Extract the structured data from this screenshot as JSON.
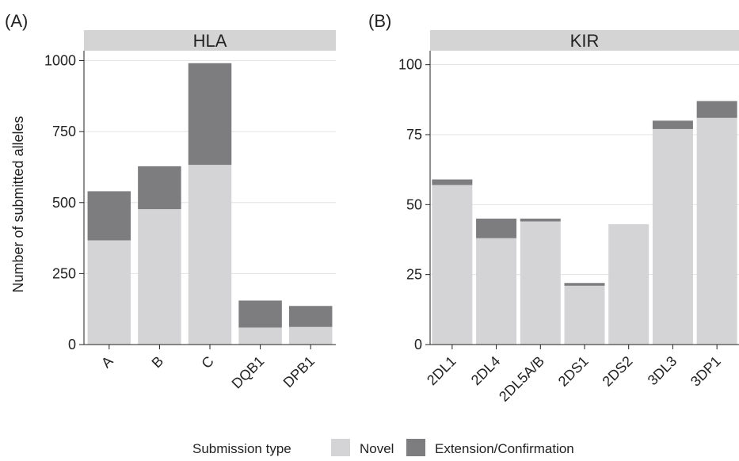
{
  "colors": {
    "novel": "#d4d4d6",
    "extension": "#7d7d80",
    "strip": "#d4d4d4",
    "grid": "#e3e3e3",
    "axis": "#222222"
  },
  "ylabel": "Number of submitted alleles",
  "legend": {
    "title": "Submission type",
    "items": [
      {
        "label": "Novel",
        "color": "#d4d4d6"
      },
      {
        "label": "Extension/Confirmation",
        "color": "#7d7d80"
      }
    ]
  },
  "chart_data": [
    {
      "type": "bar",
      "stacked": true,
      "panel_label": "(A)",
      "strip": "HLA",
      "categories": [
        "A",
        "B",
        "C",
        "DQB1",
        "DPB1"
      ],
      "series": [
        {
          "name": "Novel",
          "values": [
            367,
            477,
            633,
            60,
            62
          ]
        },
        {
          "name": "Extension/Confirmation",
          "values": [
            173,
            151,
            358,
            95,
            74
          ]
        }
      ],
      "ylim": [
        0,
        1000
      ],
      "yticks": [
        0,
        250,
        500,
        750,
        1000
      ],
      "ylabel": "Number of submitted alleles"
    },
    {
      "type": "bar",
      "stacked": true,
      "panel_label": "(B)",
      "strip": "KIR",
      "categories": [
        "2DL1",
        "2DL4",
        "2DL5A/B",
        "2DS1",
        "2DS2",
        "3DL3",
        "3DP1"
      ],
      "series": [
        {
          "name": "Novel",
          "values": [
            57,
            38,
            44,
            21,
            43,
            77,
            81
          ]
        },
        {
          "name": "Extension/Confirmation",
          "values": [
            2,
            7,
            1,
            1,
            0,
            3,
            6
          ]
        }
      ],
      "ylim": [
        0,
        100
      ],
      "yticks": [
        0,
        25,
        50,
        75,
        100
      ]
    }
  ]
}
